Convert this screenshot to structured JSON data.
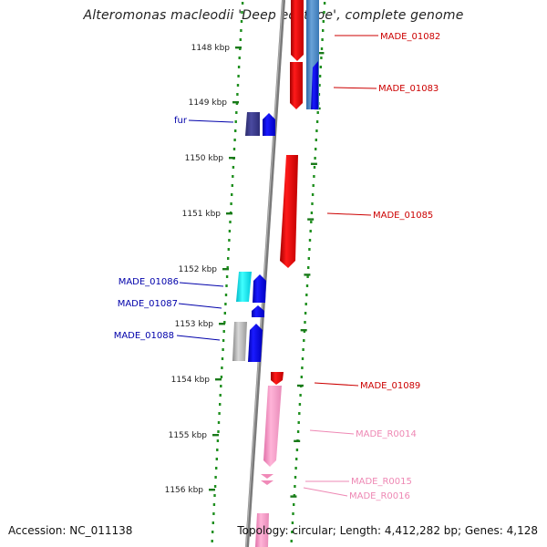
{
  "title": "Alteromonas macleodii 'Deep ecotype', complete genome",
  "footer": {
    "accession": "Accession: NC_011138",
    "topology": "Topology: circular; Length: 4,412,282 bp; Genes: 4,128"
  },
  "ticks": [
    "1148 kbp",
    "1149 kbp",
    "1150 kbp",
    "1151 kbp",
    "1152 kbp",
    "1153 kbp",
    "1154 kbp",
    "1155 kbp",
    "1156 kbp"
  ],
  "genes_right": [
    {
      "label": "MADE_01082",
      "color": "#cc0000"
    },
    {
      "label": "MADE_01083",
      "color": "#cc0000"
    },
    {
      "label": "MADE_01085",
      "color": "#cc0000"
    },
    {
      "label": "MADE_01089",
      "color": "#cc0000"
    },
    {
      "label": "MADE_R0014",
      "color": "#ee88b4"
    },
    {
      "label": "MADE_R0015",
      "color": "#ee88b4"
    },
    {
      "label": "MADE_R0016",
      "color": "#ee88b4"
    }
  ],
  "genes_left": [
    {
      "label": "fur",
      "color": "#0000aa"
    },
    {
      "label": "MADE_01086",
      "color": "#0000aa"
    },
    {
      "label": "MADE_01087",
      "color": "#0000aa"
    },
    {
      "label": "MADE_01088",
      "color": "#0000aa"
    }
  ],
  "colors": {
    "forward_gene": "#ff0000",
    "reverse_gene": "#0000ff",
    "rna_gene": "#ff9ec8",
    "backbone": "#808080",
    "dots": "#1f8f1f",
    "tick": "#1a7a1a"
  }
}
